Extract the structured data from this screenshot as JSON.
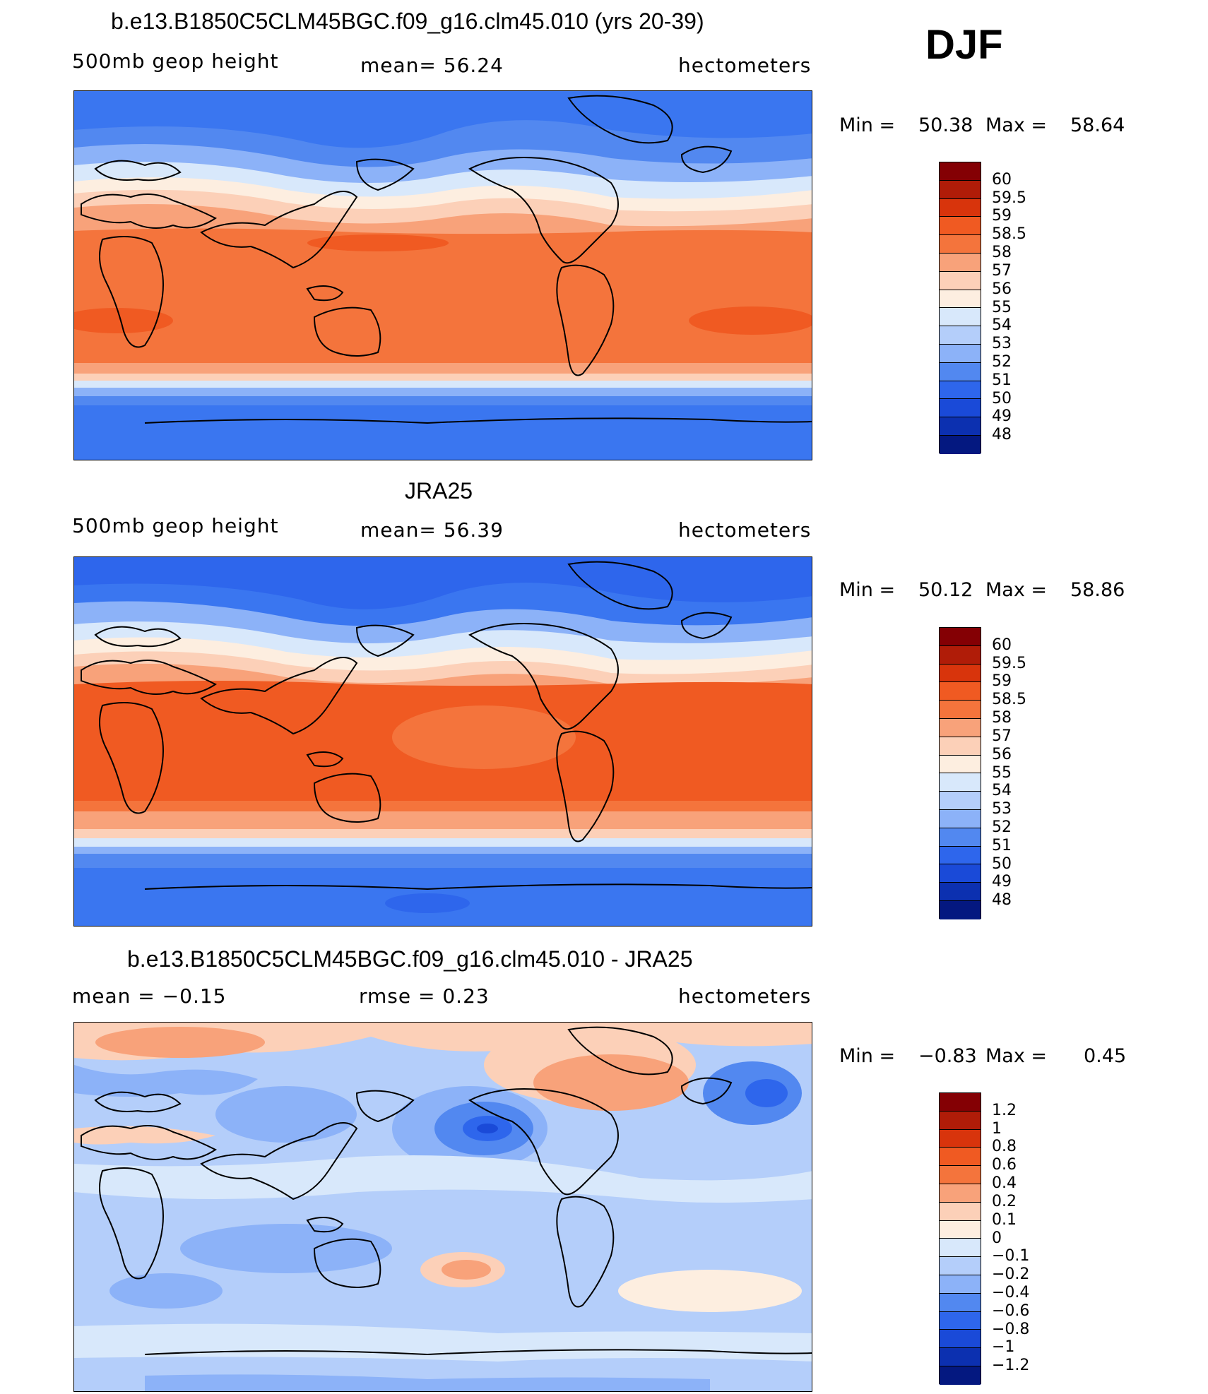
{
  "season": "DJF",
  "panels": [
    {
      "title": "b.e13.B1850C5CLM45BGC.f09_g16.clm45.010 (yrs 20-39)",
      "left_label": "500mb geop height",
      "center_label": "mean=   56.24",
      "right_label": "hectometers",
      "min_label": "Min =",
      "min_value": "50.38",
      "max_label": "Max =",
      "max_value": "58.64",
      "colorbar": {
        "labels": [
          "60",
          "59.5",
          "59",
          "58.5",
          "58",
          "57",
          "56",
          "55",
          "54",
          "53",
          "52",
          "51",
          "50",
          "49",
          "48"
        ],
        "colors": [
          "#840004",
          "#b01c08",
          "#d8340c",
          "#f05a22",
          "#f4743c",
          "#f8a27a",
          "#fcd0b8",
          "#fdeee0",
          "#d8e8fb",
          "#b4cefa",
          "#8cb2f8",
          "#5288f0",
          "#2e66ec",
          "#1a4ad8",
          "#0c30b0",
          "#041880"
        ]
      }
    },
    {
      "title": "JRA25",
      "left_label": "500mb geop height",
      "center_label": "mean=   56.39",
      "right_label": "hectometers",
      "min_label": "Min =",
      "min_value": "50.12",
      "max_label": "Max =",
      "max_value": "58.86",
      "colorbar": {
        "labels": [
          "60",
          "59.5",
          "59",
          "58.5",
          "58",
          "57",
          "56",
          "55",
          "54",
          "53",
          "52",
          "51",
          "50",
          "49",
          "48"
        ],
        "colors": [
          "#840004",
          "#b01c08",
          "#d8340c",
          "#f05a22",
          "#f4743c",
          "#f8a27a",
          "#fcd0b8",
          "#fdeee0",
          "#d8e8fb",
          "#b4cefa",
          "#8cb2f8",
          "#5288f0",
          "#2e66ec",
          "#1a4ad8",
          "#0c30b0",
          "#041880"
        ]
      }
    },
    {
      "title": "b.e13.B1850C5CLM45BGC.f09_g16.clm45.010 - JRA25",
      "left_label": "mean =   −0.15",
      "center_label": "rmse =    0.23",
      "right_label": "hectometers",
      "min_label": "Min =",
      "min_value": "−0.83",
      "max_label": "Max =",
      "max_value": "0.45",
      "colorbar": {
        "labels": [
          "1.2",
          "1",
          "0.8",
          "0.6",
          "0.4",
          "0.2",
          "0.1",
          "0",
          "−0.1",
          "−0.2",
          "−0.4",
          "−0.6",
          "−0.8",
          "−1",
          "−1.2"
        ],
        "colors": [
          "#840004",
          "#b01c08",
          "#d8340c",
          "#f05a22",
          "#f4743c",
          "#f8a27a",
          "#fcd0b8",
          "#fdeee0",
          "#d8e8fb",
          "#b4cefa",
          "#8cb2f8",
          "#5288f0",
          "#2e66ec",
          "#1a4ad8",
          "#0c30b0",
          "#041880"
        ]
      }
    }
  ]
}
